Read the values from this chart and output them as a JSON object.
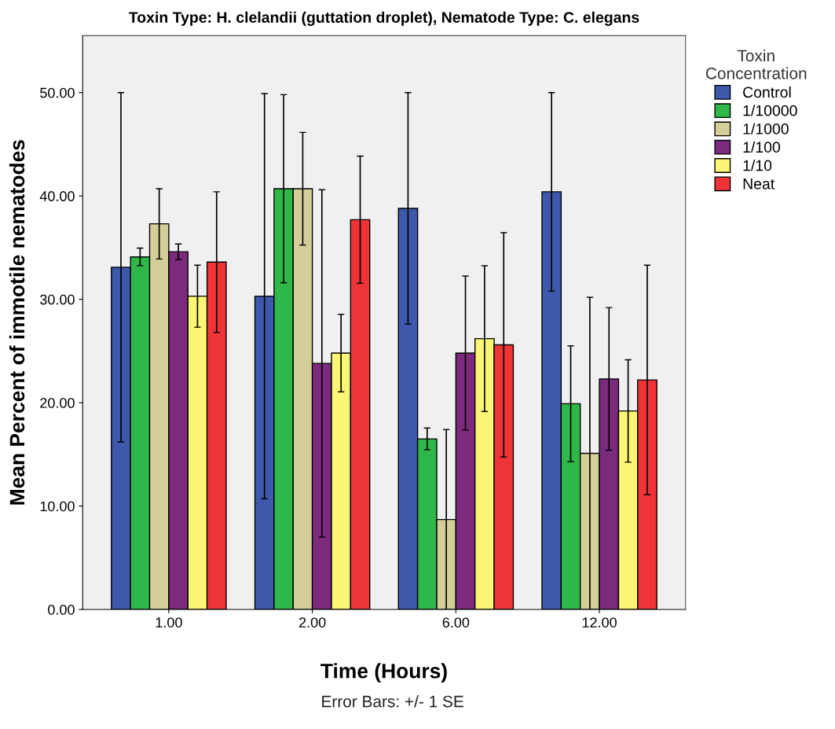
{
  "chart_data": {
    "type": "bar",
    "title": "Toxin Type: H. clelandii (guttation droplet), Nematode Type: C. elegans",
    "xlabel": "Time (Hours)",
    "ylabel": "Mean Percent of immotile nematodes",
    "legend_title": "Toxin\nConcentration",
    "annotations": [
      "Error Bars: +/- 1 SE"
    ],
    "categories": [
      "1.00",
      "2.00",
      "6.00",
      "12.00"
    ],
    "series": [
      {
        "name": "Control",
        "color": "#3e58ac",
        "values": [
          33.1,
          30.3,
          38.8,
          40.4
        ],
        "errors": [
          16.9,
          19.6,
          11.2,
          9.6
        ]
      },
      {
        "name": "1/10000",
        "color": "#2fb84a",
        "values": [
          34.1,
          40.7,
          16.5,
          19.9
        ],
        "errors": [
          0.85,
          9.1,
          1.05,
          5.6
        ]
      },
      {
        "name": "1/1000",
        "color": "#d4cf98",
        "values": [
          37.3,
          40.7,
          8.7,
          15.1
        ],
        "errors": [
          3.4,
          5.45,
          8.7,
          15.1
        ]
      },
      {
        "name": "1/100",
        "color": "#7b2a7e",
        "values": [
          34.6,
          23.8,
          24.8,
          22.3
        ],
        "errors": [
          0.75,
          16.8,
          7.45,
          6.9
        ]
      },
      {
        "name": "1/10",
        "color": "#fbf674",
        "values": [
          30.3,
          24.8,
          26.2,
          19.2
        ],
        "errors": [
          3.0,
          3.75,
          7.05,
          4.95
        ]
      },
      {
        "name": "Neat",
        "color": "#ef3438",
        "values": [
          33.6,
          37.7,
          25.6,
          22.2
        ],
        "errors": [
          6.8,
          6.15,
          10.85,
          11.1
        ]
      }
    ],
    "ylim": [
      0,
      55.5
    ],
    "yticks": [
      {
        "value": 0,
        "label": "0.00"
      },
      {
        "value": 10,
        "label": "10.00"
      },
      {
        "value": 20,
        "label": "20.00"
      },
      {
        "value": 30,
        "label": "30.00"
      },
      {
        "value": 40,
        "label": "40.00"
      },
      {
        "value": 50,
        "label": "50.00"
      }
    ],
    "grid": false,
    "legend": "right"
  }
}
